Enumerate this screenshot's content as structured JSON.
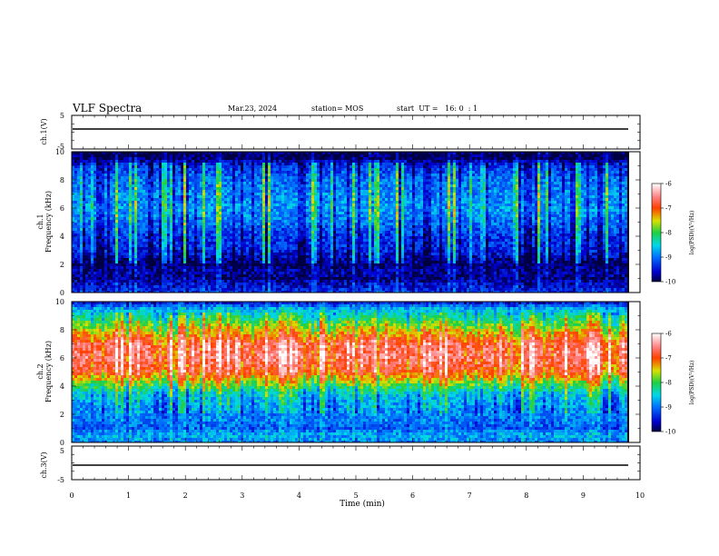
{
  "header": {
    "title": "VLF Spectra",
    "date": "Mar.23, 2024",
    "station": "station= MOS",
    "start_ut": "start  UT =   16: 0  : 1"
  },
  "chart_data": [
    {
      "type": "line",
      "panel": "ch1-waveform",
      "ylabel": "ch.1(V)",
      "ylim": [
        -5,
        5
      ],
      "yticks": [
        "5",
        "-5"
      ],
      "xlim": [
        0,
        10
      ],
      "series": [
        {
          "values_description_level": 0
        }
      ]
    },
    {
      "type": "heatmap",
      "panel": "ch1-spectrogram",
      "ylabel_top": "ch.1",
      "ylabel": "Frequency (kHz)",
      "ylim": [
        0,
        10
      ],
      "yticks": [
        "0",
        "2",
        "4",
        "6",
        "8",
        "10"
      ],
      "xlim": [
        0,
        10
      ],
      "data_end_min": 9.8,
      "intensity_profile": {
        "freq_khz": [
          0,
          0.5,
          1,
          1.5,
          2,
          3,
          4,
          5,
          6,
          7,
          8,
          9,
          9.5,
          10
        ],
        "log_psd": [
          -9.3,
          -9.5,
          -9.8,
          -9.7,
          -9.9,
          -9.4,
          -9.3,
          -9.0,
          -8.8,
          -8.9,
          -9.0,
          -9.3,
          -9.9,
          -10.0
        ]
      },
      "colorbar": {
        "label": "log(PSD)(V²/Hz)",
        "min": -10,
        "max": -6,
        "ticks": [
          "-6",
          "-7",
          "-8",
          "-9",
          "-10"
        ]
      }
    },
    {
      "type": "heatmap",
      "panel": "ch2-spectrogram",
      "ylabel_top": "ch.2",
      "ylabel": "Frequency (kHz)",
      "ylim": [
        0,
        10
      ],
      "yticks": [
        "0",
        "2",
        "4",
        "6",
        "8",
        "10"
      ],
      "xlim": [
        0,
        10
      ],
      "data_end_min": 9.8,
      "intensity_profile": {
        "freq_khz": [
          0,
          0.5,
          1,
          1.5,
          2,
          3,
          3.5,
          4,
          5,
          6,
          7,
          7.5,
          8,
          8.5,
          9,
          9.5,
          10
        ],
        "log_psd": [
          -8.9,
          -8.7,
          -9.1,
          -9.0,
          -8.9,
          -8.7,
          -8.5,
          -8.0,
          -6.9,
          -6.6,
          -6.7,
          -7.1,
          -7.5,
          -7.9,
          -8.3,
          -8.7,
          -9.6
        ]
      },
      "colorbar": {
        "label": "log(PSD)(V²/Hz)",
        "min": -10,
        "max": -6,
        "ticks": [
          "-6",
          "-7",
          "-8",
          "-9",
          "-10"
        ]
      }
    },
    {
      "type": "line",
      "panel": "ch3-waveform",
      "ylabel": "ch.3(V)",
      "ylim": [
        -5,
        5
      ],
      "yticks": [
        "5",
        "-5"
      ],
      "xlim": [
        0,
        10
      ],
      "series": [
        {
          "values_description_level": 0
        }
      ]
    }
  ],
  "xaxis": {
    "label": "Time  (min)",
    "ticks": [
      "0",
      "1",
      "2",
      "3",
      "4",
      "5",
      "6",
      "7",
      "8",
      "9",
      "10"
    ]
  }
}
